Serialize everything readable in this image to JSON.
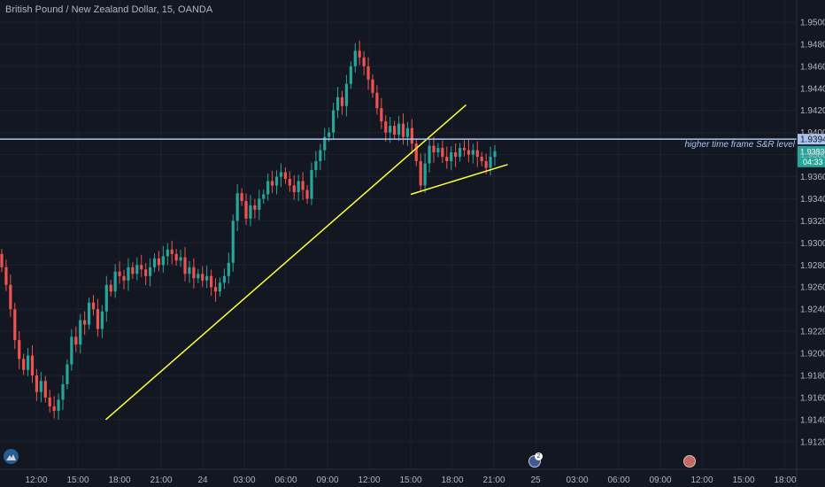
{
  "header": {
    "symbol_title": "British Pound / New Zealand Dollar, 15, OANDA"
  },
  "colors": {
    "background": "#131722",
    "up": "#26a69a",
    "down": "#ef5350",
    "trendline": "#ffff3b",
    "level_line": "#a9c6f0",
    "grid": "#1e222d"
  },
  "icons": {
    "logo": "tradingview-logo-icon",
    "event_1": "flag-event-icon",
    "event_2": "flag-event-icon"
  },
  "events": {
    "event_1_count": "2"
  },
  "chart_data": {
    "type": "candlestick",
    "y_axis": {
      "ylim": [
        1.9095,
        1.952
      ],
      "ticks": [
        "1.95000",
        "1.94800",
        "1.94600",
        "1.94400",
        "1.94200",
        "1.94000",
        "1.93800",
        "1.93600",
        "1.93400",
        "1.93200",
        "1.93000",
        "1.92800",
        "1.92600",
        "1.92400",
        "1.92200",
        "1.92000",
        "1.91800",
        "1.91600",
        "1.91400",
        "1.91200"
      ],
      "tick_values": [
        1.95,
        1.948,
        1.946,
        1.944,
        1.942,
        1.94,
        1.938,
        1.936,
        1.934,
        1.932,
        1.93,
        1.928,
        1.926,
        1.924,
        1.922,
        1.92,
        1.918,
        1.916,
        1.914,
        1.912
      ]
    },
    "x_axis": {
      "ticks": [
        "12:00",
        "15:00",
        "18:00",
        "21:00",
        "24",
        "03:00",
        "06:00",
        "09:00",
        "12:00",
        "15:00",
        "18:00",
        "21:00",
        "25",
        "03:00",
        "06:00",
        "09:00",
        "12:00",
        "15:00",
        "18:00"
      ]
    },
    "horizontal_level": {
      "value": 1.9394,
      "label": "1.93940",
      "annotation": "higher time frame S&R level"
    },
    "last_price": {
      "label": "1.93834",
      "countdown": "04:33"
    },
    "trendlines": [
      {
        "from": [
          1.67,
          1.914
        ],
        "to": [
          10.33,
          1.9425
        ]
      },
      {
        "from": [
          9.0,
          1.9344
        ],
        "to": [
          11.33,
          1.9371
        ]
      }
    ],
    "close": [
      1.9278,
      1.9262,
      1.924,
      1.9212,
      1.9195,
      1.9185,
      1.9198,
      1.918,
      1.9165,
      1.9175,
      1.916,
      1.9152,
      1.9148,
      1.9158,
      1.9172,
      1.919,
      1.9215,
      1.9208,
      1.923,
      1.9226,
      1.9246,
      1.924,
      1.9222,
      1.9238,
      1.9262,
      1.9256,
      1.9274,
      1.927,
      1.9266,
      1.9278,
      1.9272,
      1.928,
      1.9276,
      1.927,
      1.9278,
      1.9286,
      1.928,
      1.9288,
      1.9294,
      1.929,
      1.9284,
      1.9287,
      1.9272,
      1.9278,
      1.9268,
      1.9272,
      1.9266,
      1.927,
      1.926,
      1.9256,
      1.9264,
      1.927,
      1.9282,
      1.932,
      1.9345,
      1.9338,
      1.9322,
      1.9334,
      1.933,
      1.934,
      1.9344,
      1.9356,
      1.9352,
      1.936,
      1.9364,
      1.9358,
      1.9352,
      1.9346,
      1.9356,
      1.9348,
      1.934,
      1.9366,
      1.9374,
      1.9384,
      1.9396,
      1.94,
      1.942,
      1.9432,
      1.9424,
      1.9444,
      1.946,
      1.9474,
      1.9468,
      1.946,
      1.9448,
      1.9436,
      1.9422,
      1.941,
      1.94,
      1.9406,
      1.9398,
      1.9408,
      1.9396,
      1.9404,
      1.939,
      1.9374,
      1.9352,
      1.9372,
      1.9388,
      1.9382,
      1.9386,
      1.9378,
      1.9374,
      1.9382,
      1.9378,
      1.9386,
      1.9384,
      1.938,
      1.9384,
      1.9378,
      1.9374,
      1.9368,
      1.9378,
      1.9383
    ]
  }
}
